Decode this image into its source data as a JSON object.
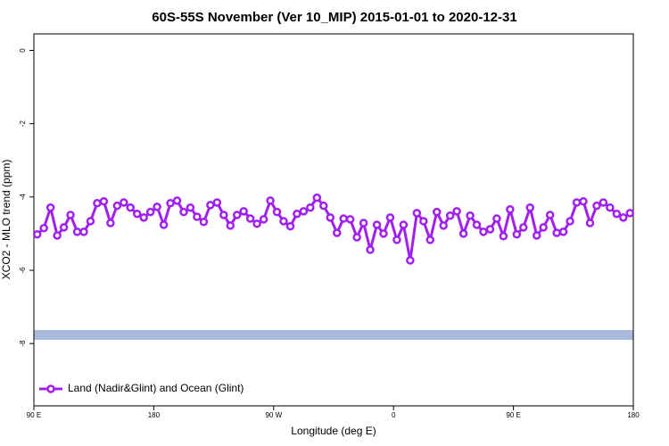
{
  "chart_data": {
    "type": "line",
    "title": "60S-55S November (Ver 10_MIP)   2015-01-01 to 2020-12-31",
    "x_label": "Longitude (deg E)",
    "y_label": "XCO2 - MLO trend (ppm)",
    "x": [
      92.5,
      97.5,
      102.5,
      107.5,
      112.5,
      117.5,
      122.5,
      127.5,
      132.5,
      137.5,
      142.5,
      147.5,
      152.5,
      157.5,
      162.5,
      167.5,
      172.5,
      177.5,
      182.5,
      187.5,
      192.5,
      197.5,
      202.5,
      207.5,
      212.5,
      217.5,
      222.5,
      227.5,
      232.5,
      237.5,
      242.5,
      247.5,
      252.5,
      257.5,
      262.5,
      267.5,
      272.5,
      277.5,
      282.5,
      287.5,
      292.5,
      297.5,
      302.5,
      307.5,
      312.5,
      317.5,
      322.5,
      327.5,
      332.5,
      337.5,
      342.5,
      347.5,
      352.5,
      357.5,
      362.5,
      367.5,
      372.5,
      377.5,
      382.5,
      387.5,
      392.5,
      397.5,
      402.5,
      407.5,
      412.5,
      417.5,
      422.5,
      427.5,
      432.5,
      437.5,
      442.5,
      447.5,
      452.5,
      457.5,
      462.5,
      467.5,
      472.5,
      477.5,
      482.5,
      487.5,
      492.5,
      497.5,
      502.5,
      507.5,
      512.5,
      517.5,
      522.5,
      527.5,
      532.5,
      537.5
    ],
    "series": [
      {
        "name": "Land (Nadir&Glint) and Ocean (Glint)",
        "color": "#a020f0",
        "values": [
          -5.02,
          -4.85,
          -4.29,
          -5.05,
          -4.83,
          -4.49,
          -4.95,
          -4.95,
          -4.66,
          -4.17,
          -4.12,
          -4.71,
          -4.24,
          -4.15,
          -4.29,
          -4.46,
          -4.56,
          -4.41,
          -4.27,
          -4.76,
          -4.17,
          -4.1,
          -4.41,
          -4.29,
          -4.54,
          -4.68,
          -4.22,
          -4.15,
          -4.49,
          -4.78,
          -4.49,
          -4.39,
          -4.59,
          -4.73,
          -4.61,
          -4.1,
          -4.41,
          -4.66,
          -4.8,
          -4.46,
          -4.39,
          -4.29,
          -4.02,
          -4.24,
          -4.56,
          -4.98,
          -4.59,
          -4.61,
          -5.1,
          -4.71,
          -5.44,
          -4.76,
          -5.0,
          -4.56,
          -5.17,
          -4.76,
          -5.73,
          -4.44,
          -4.66,
          -5.17,
          -4.41,
          -4.78,
          -4.51,
          -4.39,
          -5.0,
          -4.51,
          -4.76,
          -4.95,
          -4.88,
          -4.59,
          -5.07,
          -4.34,
          -5.02,
          -4.83,
          -4.29,
          -5.05,
          -4.83,
          -4.49,
          -4.98,
          -4.95,
          -4.66,
          -4.15,
          -4.12,
          -4.71,
          -4.24,
          -4.15,
          -4.29,
          -4.46,
          -4.56,
          -4.44
        ]
      }
    ],
    "band": {
      "ymin": -7.9,
      "ymax": -7.63,
      "color": "#a8bbdc"
    },
    "xlim": [
      90,
      540
    ],
    "xticks": [
      {
        "value": 90,
        "label": "90 E"
      },
      {
        "value": 180,
        "label": "180"
      },
      {
        "value": 270,
        "label": "90 W"
      },
      {
        "value": 360,
        "label": "0"
      },
      {
        "value": 450,
        "label": "90 E"
      },
      {
        "value": 540,
        "label": "180"
      }
    ],
    "ylim": [
      -9.7,
      0.45
    ],
    "yticks": [
      0,
      -2,
      -4,
      -6,
      -8
    ],
    "legend": "bottomleft"
  }
}
